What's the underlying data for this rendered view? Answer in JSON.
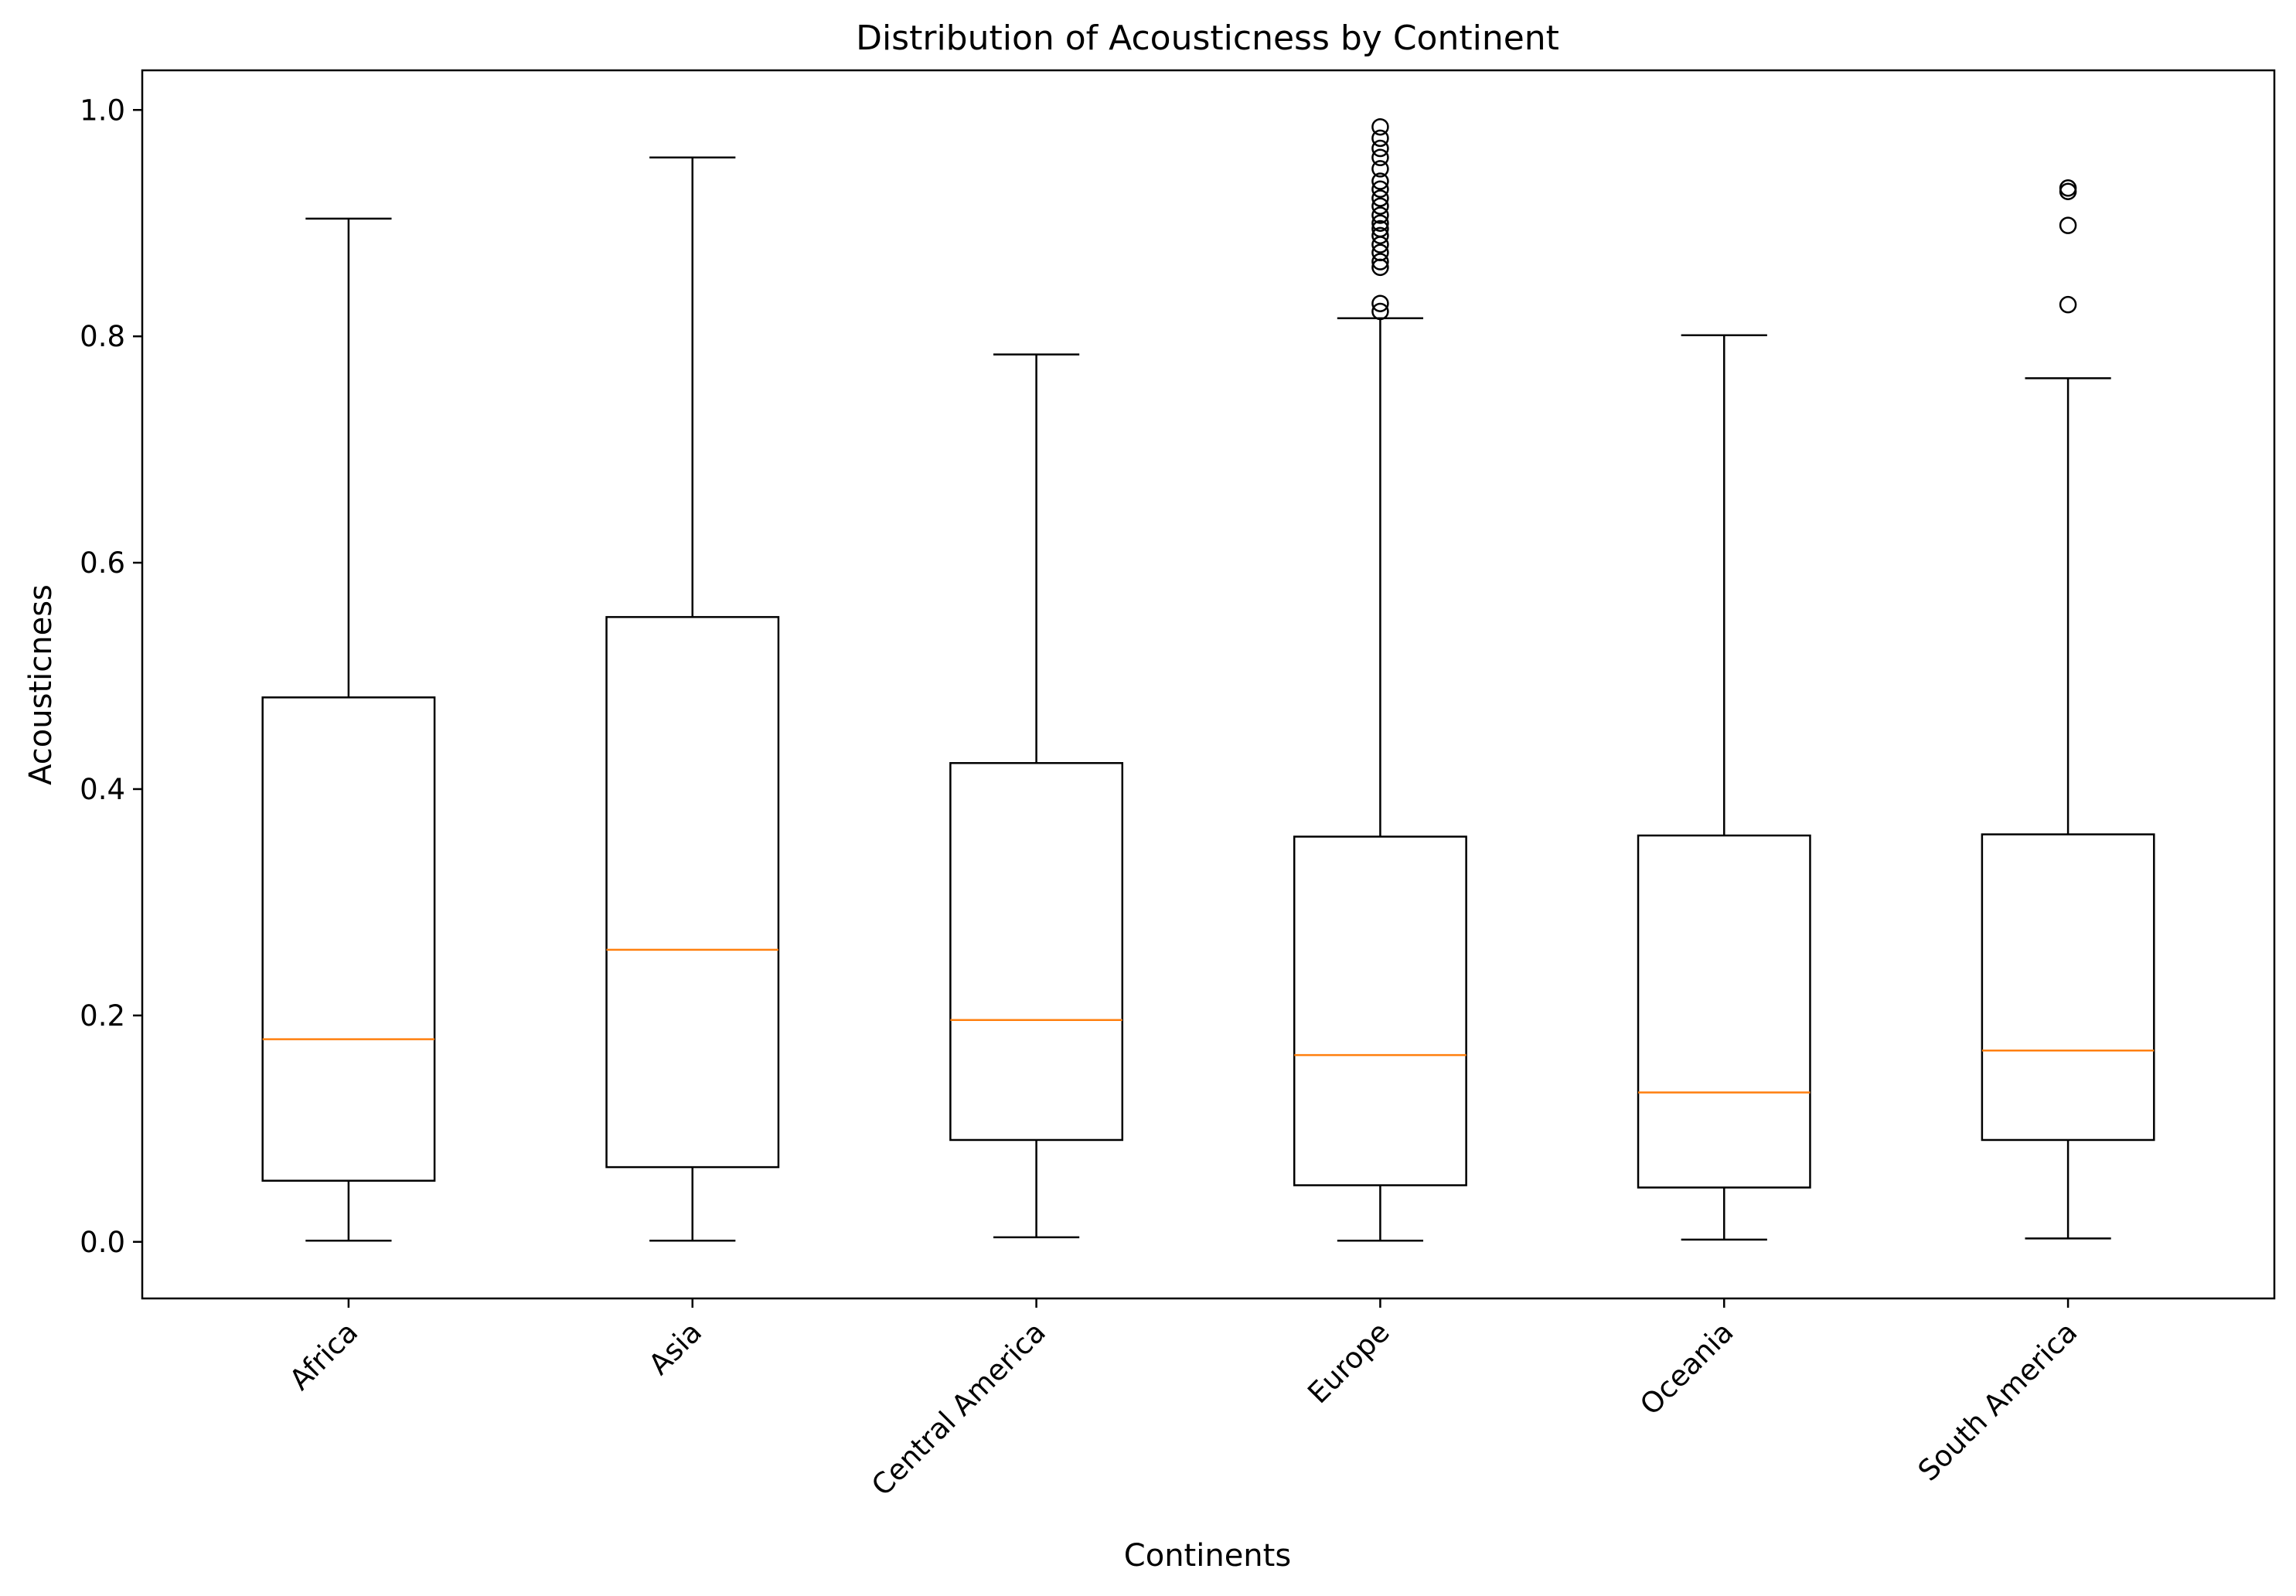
{
  "chart_data": {
    "type": "box",
    "title": "Distribution of Acousticness by Continent",
    "xlabel": "Continents",
    "ylabel": "Acousticness",
    "ylim": [
      -0.05,
      1.035
    ],
    "yticks": [
      0.0,
      0.2,
      0.4,
      0.6,
      0.8,
      1.0
    ],
    "ytick_labels": [
      "0.0",
      "0.2",
      "0.4",
      "0.6",
      "0.8",
      "1.0"
    ],
    "grid": false,
    "legend": "none",
    "colors": {
      "box": "#000000",
      "median": "#ff7f0e",
      "flier": "#000000"
    },
    "categories": [
      "Africa",
      "Asia",
      "Central America",
      "Europe",
      "Oceania",
      "South America"
    ],
    "boxes": [
      {
        "category": "Africa",
        "whisker_low": 0.001,
        "q1": 0.054,
        "median": 0.179,
        "q3": 0.481,
        "whisker_high": 0.904,
        "fliers": []
      },
      {
        "category": "Asia",
        "whisker_low": 0.001,
        "q1": 0.066,
        "median": 0.258,
        "q3": 0.552,
        "whisker_high": 0.958,
        "fliers": []
      },
      {
        "category": "Central America",
        "whisker_low": 0.004,
        "q1": 0.09,
        "median": 0.196,
        "q3": 0.423,
        "whisker_high": 0.784,
        "fliers": []
      },
      {
        "category": "Europe",
        "whisker_low": 0.001,
        "q1": 0.05,
        "median": 0.165,
        "q3": 0.358,
        "whisker_high": 0.816,
        "fliers": [
          0.822,
          0.829,
          0.861,
          0.866,
          0.874,
          0.881,
          0.889,
          0.895,
          0.9,
          0.907,
          0.915,
          0.922,
          0.93,
          0.937,
          0.948,
          0.958,
          0.966,
          0.975,
          0.985
        ]
      },
      {
        "category": "Oceania",
        "whisker_low": 0.002,
        "q1": 0.048,
        "median": 0.132,
        "q3": 0.359,
        "whisker_high": 0.801,
        "fliers": []
      },
      {
        "category": "South America",
        "whisker_low": 0.003,
        "q1": 0.09,
        "median": 0.169,
        "q3": 0.36,
        "whisker_high": 0.763,
        "fliers": [
          0.828,
          0.898,
          0.928,
          0.931
        ]
      }
    ]
  }
}
